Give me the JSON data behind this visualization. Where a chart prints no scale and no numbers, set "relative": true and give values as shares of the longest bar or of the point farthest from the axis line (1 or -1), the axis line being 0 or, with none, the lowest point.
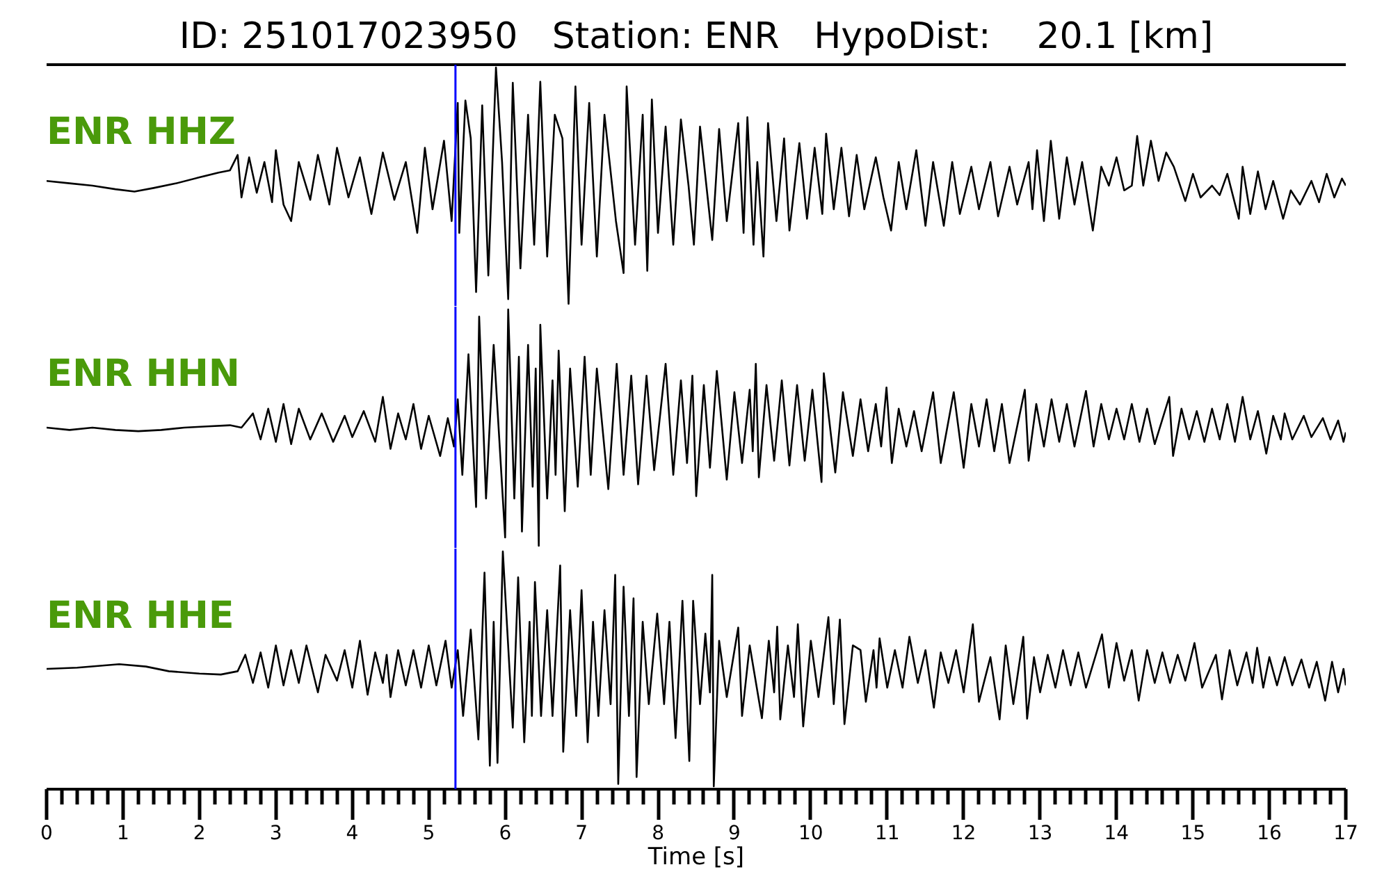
{
  "chart_data": [
    {
      "type": "line",
      "title": "ID: 251017023950   Station: ENR   HypoDist:    20.1 [km]",
      "relative": true,
      "xlim": [
        0,
        17
      ],
      "tick_labels": false,
      "ref_lines": [
        {
          "axis": "x",
          "value": 5.35,
          "color": "#0000ff"
        }
      ],
      "x": [
        0,
        0.3,
        0.6,
        0.9,
        1.15,
        1.4,
        1.7,
        2.0,
        2.25,
        2.4,
        2.5,
        2.55,
        2.65,
        2.75,
        2.85,
        2.95,
        3.0,
        3.1,
        3.2,
        3.3,
        3.45,
        3.55,
        3.7,
        3.8,
        3.95,
        4.1,
        4.25,
        4.4,
        4.55,
        4.7,
        4.85,
        4.95,
        5.05,
        5.2,
        5.3,
        5.38,
        5.4,
        5.48,
        5.55,
        5.62,
        5.7,
        5.78,
        5.88,
        5.96,
        6.04,
        6.1,
        6.2,
        6.3,
        6.38,
        6.46,
        6.55,
        6.65,
        6.75,
        6.83,
        6.92,
        7.0,
        7.1,
        7.2,
        7.3,
        7.45,
        7.55,
        7.59,
        7.7,
        7.8,
        7.86,
        7.92,
        8.0,
        8.1,
        8.2,
        8.3,
        8.4,
        8.47,
        8.55,
        8.65,
        8.71,
        8.8,
        8.9,
        9.05,
        9.12,
        9.17,
        9.25,
        9.3,
        9.38,
        9.44,
        9.55,
        9.65,
        9.72,
        9.85,
        9.95,
        10.05,
        10.15,
        10.2,
        10.3,
        10.4,
        10.5,
        10.6,
        10.7,
        10.85,
        10.95,
        11.05,
        11.15,
        11.25,
        11.38,
        11.5,
        11.6,
        11.74,
        11.85,
        11.95,
        12.1,
        12.2,
        12.35,
        12.45,
        12.6,
        12.7,
        12.85,
        12.9,
        12.96,
        13.05,
        13.14,
        13.25,
        13.35,
        13.45,
        13.55,
        13.69,
        13.8,
        13.9,
        14.0,
        14.1,
        14.2,
        14.27,
        14.35,
        14.45,
        14.55,
        14.65,
        14.75,
        14.9,
        15.0,
        15.1,
        15.25,
        15.35,
        15.45,
        15.6,
        15.65,
        15.75,
        15.85,
        15.95,
        16.05,
        16.18,
        16.28,
        16.4,
        16.55,
        16.65,
        16.75,
        16.85,
        16.95,
        17.0
      ],
      "series": [
        {
          "name": "ENR HHZ",
          "color": "#000000",
          "values": [
            0.52,
            0.51,
            0.5,
            0.485,
            0.475,
            0.49,
            0.51,
            0.535,
            0.555,
            0.565,
            0.63,
            0.45,
            0.62,
            0.47,
            0.6,
            0.43,
            0.65,
            0.42,
            0.35,
            0.6,
            0.44,
            0.63,
            0.42,
            0.66,
            0.45,
            0.62,
            0.38,
            0.64,
            0.44,
            0.6,
            0.3,
            0.66,
            0.4,
            0.69,
            0.35,
            0.85,
            0.3,
            0.86,
            0.7,
            0.05,
            0.84,
            0.12,
            1.0,
            0.6,
            0.02,
            0.935,
            0.15,
            0.8,
            0.25,
            0.94,
            0.2,
            0.8,
            0.7,
            0.0,
            0.92,
            0.25,
            0.85,
            0.2,
            0.8,
            0.35,
            0.13,
            0.92,
            0.25,
            0.8,
            0.14,
            0.865,
            0.3,
            0.75,
            0.25,
            0.78,
            0.5,
            0.25,
            0.75,
            0.45,
            0.27,
            0.74,
            0.35,
            0.765,
            0.3,
            0.79,
            0.25,
            0.6,
            0.2,
            0.765,
            0.35,
            0.7,
            0.31,
            0.68,
            0.36,
            0.66,
            0.38,
            0.72,
            0.4,
            0.66,
            0.37,
            0.63,
            0.4,
            0.62,
            0.45,
            0.31,
            0.6,
            0.4,
            0.65,
            0.33,
            0.6,
            0.33,
            0.6,
            0.38,
            0.58,
            0.4,
            0.6,
            0.37,
            0.58,
            0.42,
            0.6,
            0.4,
            0.65,
            0.35,
            0.69,
            0.36,
            0.62,
            0.42,
            0.6,
            0.31,
            0.58,
            0.5,
            0.62,
            0.48,
            0.5,
            0.71,
            0.5,
            0.69,
            0.52,
            0.64,
            0.58,
            0.435,
            0.55,
            0.45,
            0.5,
            0.46,
            0.55,
            0.36,
            0.58,
            0.38,
            0.56,
            0.4,
            0.52,
            0.36,
            0.48,
            0.42,
            0.52,
            0.43,
            0.55,
            0.45,
            0.53,
            0.5
          ]
        }
      ]
    },
    {
      "type": "line",
      "relative": true,
      "xlim": [
        0,
        17
      ],
      "tick_labels": false,
      "ref_lines": [
        {
          "axis": "x",
          "value": 5.35,
          "color": "#0000ff"
        }
      ],
      "x": [
        0,
        0.3,
        0.6,
        0.9,
        1.2,
        1.5,
        1.8,
        2.1,
        2.4,
        2.55,
        2.7,
        2.8,
        2.9,
        3.0,
        3.1,
        3.2,
        3.3,
        3.45,
        3.6,
        3.75,
        3.9,
        4.0,
        4.15,
        4.3,
        4.4,
        4.5,
        4.6,
        4.7,
        4.8,
        4.9,
        5.0,
        5.15,
        5.25,
        5.33,
        5.38,
        5.44,
        5.52,
        5.62,
        5.66,
        5.75,
        5.85,
        6.0,
        6.04,
        6.12,
        6.18,
        6.22,
        6.3,
        6.36,
        6.4,
        6.44,
        6.46,
        6.55,
        6.62,
        6.66,
        6.7,
        6.78,
        6.85,
        6.95,
        7.04,
        7.12,
        7.2,
        7.35,
        7.46,
        7.55,
        7.65,
        7.74,
        7.85,
        7.95,
        8.1,
        8.2,
        8.3,
        8.38,
        8.45,
        8.5,
        8.6,
        8.68,
        8.77,
        8.9,
        9.0,
        9.1,
        9.2,
        9.24,
        9.28,
        9.32,
        9.42,
        9.52,
        9.62,
        9.72,
        9.82,
        9.92,
        10.02,
        10.14,
        10.17,
        10.32,
        10.42,
        10.55,
        10.65,
        10.75,
        10.85,
        10.92,
        10.99,
        11.06,
        11.15,
        11.25,
        11.35,
        11.45,
        11.6,
        11.7,
        11.87,
        12.0,
        12.1,
        12.2,
        12.3,
        12.4,
        12.5,
        12.6,
        12.8,
        12.85,
        12.95,
        13.05,
        13.15,
        13.25,
        13.35,
        13.45,
        13.6,
        13.7,
        13.8,
        13.9,
        14.0,
        14.1,
        14.2,
        14.3,
        14.4,
        14.5,
        14.69,
        14.74,
        14.85,
        14.95,
        15.05,
        15.15,
        15.25,
        15.35,
        15.45,
        15.55,
        15.65,
        15.75,
        15.85,
        15.96,
        16.05,
        16.15,
        16.2,
        16.3,
        16.45,
        16.55,
        16.7,
        16.8,
        16.9,
        16.97,
        17.0
      ],
      "series": [
        {
          "name": "ENR HHN",
          "color": "#000000",
          "values": [
            0.5,
            0.49,
            0.5,
            0.49,
            0.485,
            0.49,
            0.5,
            0.505,
            0.51,
            0.5,
            0.56,
            0.45,
            0.58,
            0.44,
            0.6,
            0.43,
            0.58,
            0.45,
            0.56,
            0.44,
            0.55,
            0.46,
            0.57,
            0.44,
            0.63,
            0.41,
            0.56,
            0.45,
            0.6,
            0.41,
            0.55,
            0.38,
            0.54,
            0.42,
            0.62,
            0.3,
            0.81,
            0.164,
            0.97,
            0.2,
            0.85,
            0.035,
            1.0,
            0.2,
            0.8,
            0.06,
            0.85,
            0.25,
            0.75,
            0.0,
            0.935,
            0.2,
            0.7,
            0.3,
            0.826,
            0.146,
            0.75,
            0.25,
            0.8,
            0.3,
            0.75,
            0.24,
            0.77,
            0.3,
            0.72,
            0.26,
            0.72,
            0.32,
            0.77,
            0.3,
            0.7,
            0.35,
            0.72,
            0.21,
            0.68,
            0.33,
            0.74,
            0.28,
            0.65,
            0.35,
            0.66,
            0.4,
            0.77,
            0.29,
            0.68,
            0.36,
            0.7,
            0.34,
            0.68,
            0.36,
            0.66,
            0.27,
            0.73,
            0.31,
            0.65,
            0.38,
            0.62,
            0.4,
            0.6,
            0.42,
            0.67,
            0.35,
            0.58,
            0.42,
            0.57,
            0.4,
            0.65,
            0.35,
            0.65,
            0.33,
            0.6,
            0.42,
            0.62,
            0.4,
            0.6,
            0.35,
            0.66,
            0.36,
            0.6,
            0.42,
            0.62,
            0.44,
            0.6,
            0.42,
            0.655,
            0.42,
            0.6,
            0.45,
            0.58,
            0.45,
            0.6,
            0.44,
            0.58,
            0.43,
            0.63,
            0.38,
            0.58,
            0.45,
            0.57,
            0.44,
            0.58,
            0.45,
            0.6,
            0.44,
            0.63,
            0.45,
            0.57,
            0.39,
            0.55,
            0.45,
            0.56,
            0.45,
            0.55,
            0.46,
            0.54,
            0.45,
            0.53,
            0.44,
            0.48
          ]
        }
      ]
    },
    {
      "type": "line",
      "relative": true,
      "xlabel": "Time [s]",
      "xlim": [
        0,
        17
      ],
      "tick_labels": "x",
      "xticks": [
        0,
        {
          "value": 0.2,
          "label": null
        },
        {
          "value": 0.4,
          "label": null
        },
        {
          "value": 0.6,
          "label": null
        },
        {
          "value": 0.8,
          "label": null
        },
        1,
        {
          "value": 1.2,
          "label": null
        },
        {
          "value": 1.4,
          "label": null
        },
        {
          "value": 1.6,
          "label": null
        },
        {
          "value": 1.8,
          "label": null
        },
        2,
        {
          "value": 2.2,
          "label": null
        },
        {
          "value": 2.4,
          "label": null
        },
        {
          "value": 2.6,
          "label": null
        },
        {
          "value": 2.8,
          "label": null
        },
        3,
        {
          "value": 3.2,
          "label": null
        },
        {
          "value": 3.4,
          "label": null
        },
        {
          "value": 3.6,
          "label": null
        },
        {
          "value": 3.8,
          "label": null
        },
        4,
        {
          "value": 4.2,
          "label": null
        },
        {
          "value": 4.4,
          "label": null
        },
        {
          "value": 4.6,
          "label": null
        },
        {
          "value": 4.8,
          "label": null
        },
        5,
        {
          "value": 5.2,
          "label": null
        },
        {
          "value": 5.4,
          "label": null
        },
        {
          "value": 5.6,
          "label": null
        },
        {
          "value": 5.8,
          "label": null
        },
        6,
        {
          "value": 6.2,
          "label": null
        },
        {
          "value": 6.4,
          "label": null
        },
        {
          "value": 6.6,
          "label": null
        },
        {
          "value": 6.8,
          "label": null
        },
        7,
        {
          "value": 7.2,
          "label": null
        },
        {
          "value": 7.4,
          "label": null
        },
        {
          "value": 7.6,
          "label": null
        },
        {
          "value": 7.8,
          "label": null
        },
        8,
        {
          "value": 8.2,
          "label": null
        },
        {
          "value": 8.4,
          "label": null
        },
        {
          "value": 8.6,
          "label": null
        },
        {
          "value": 8.8,
          "label": null
        },
        9,
        {
          "value": 9.2,
          "label": null
        },
        {
          "value": 9.4,
          "label": null
        },
        {
          "value": 9.6,
          "label": null
        },
        {
          "value": 9.8,
          "label": null
        },
        10,
        {
          "value": 10.2,
          "label": null
        },
        {
          "value": 10.4,
          "label": null
        },
        {
          "value": 10.6,
          "label": null
        },
        {
          "value": 10.8,
          "label": null
        },
        11,
        {
          "value": 11.2,
          "label": null
        },
        {
          "value": 11.4,
          "label": null
        },
        {
          "value": 11.6,
          "label": null
        },
        {
          "value": 11.8,
          "label": null
        },
        12,
        {
          "value": 12.2,
          "label": null
        },
        {
          "value": 12.4,
          "label": null
        },
        {
          "value": 12.6,
          "label": null
        },
        {
          "value": 12.8,
          "label": null
        },
        13,
        {
          "value": 13.2,
          "label": null
        },
        {
          "value": 13.4,
          "label": null
        },
        {
          "value": 13.6,
          "label": null
        },
        {
          "value": 13.8,
          "label": null
        },
        14,
        {
          "value": 14.2,
          "label": null
        },
        {
          "value": 14.4,
          "label": null
        },
        {
          "value": 14.6,
          "label": null
        },
        {
          "value": 14.8,
          "label": null
        },
        15,
        {
          "value": 15.2,
          "label": null
        },
        {
          "value": 15.4,
          "label": null
        },
        {
          "value": 15.6,
          "label": null
        },
        {
          "value": 15.8,
          "label": null
        },
        16,
        {
          "value": 16.2,
          "label": null
        },
        {
          "value": 16.4,
          "label": null
        },
        {
          "value": 16.6,
          "label": null
        },
        {
          "value": 16.8,
          "label": null
        },
        17
      ],
      "ref_lines": [
        {
          "axis": "x",
          "value": 5.35,
          "color": "#0000ff"
        }
      ],
      "x": [
        0,
        0.4,
        0.95,
        1.3,
        1.6,
        2.0,
        2.28,
        2.5,
        2.6,
        2.7,
        2.8,
        2.9,
        3.0,
        3.1,
        3.2,
        3.3,
        3.4,
        3.55,
        3.65,
        3.8,
        3.9,
        4.0,
        4.1,
        4.2,
        4.3,
        4.4,
        4.45,
        4.5,
        4.6,
        4.7,
        4.8,
        4.9,
        5.0,
        5.1,
        5.22,
        5.3,
        5.38,
        5.45,
        5.55,
        5.65,
        5.73,
        5.8,
        5.85,
        5.9,
        5.97,
        6.1,
        6.17,
        6.25,
        6.32,
        6.35,
        6.39,
        6.47,
        6.55,
        6.62,
        6.72,
        6.76,
        6.85,
        6.93,
        7.0,
        7.08,
        7.15,
        7.22,
        7.3,
        7.38,
        7.44,
        7.48,
        7.55,
        7.62,
        7.68,
        7.72,
        7.8,
        7.88,
        7.99,
        8.08,
        8.15,
        8.23,
        8.32,
        8.41,
        8.46,
        8.55,
        8.62,
        8.68,
        8.71,
        8.73,
        8.8,
        8.9,
        9.05,
        9.1,
        9.2,
        9.36,
        9.45,
        9.52,
        9.56,
        9.6,
        9.7,
        9.78,
        9.83,
        9.9,
        10.0,
        10.1,
        10.23,
        10.3,
        10.38,
        10.44,
        10.55,
        10.65,
        10.72,
        10.82,
        10.86,
        10.9,
        11.0,
        11.1,
        11.2,
        11.29,
        11.4,
        11.5,
        11.61,
        11.7,
        11.8,
        11.9,
        12.0,
        12.12,
        12.2,
        12.35,
        12.47,
        12.55,
        12.65,
        12.78,
        12.83,
        12.92,
        13.0,
        13.1,
        13.2,
        13.3,
        13.4,
        13.5,
        13.6,
        13.81,
        13.9,
        14.0,
        14.1,
        14.2,
        14.29,
        14.4,
        14.5,
        14.6,
        14.7,
        14.8,
        14.9,
        15.02,
        15.12,
        15.3,
        15.38,
        15.48,
        15.58,
        15.7,
        15.78,
        15.84,
        15.92,
        16.0,
        16.1,
        16.2,
        16.3,
        16.42,
        16.52,
        16.62,
        16.73,
        16.82,
        16.9,
        16.97,
        17.0
      ],
      "series": [
        {
          "name": "ENR HHE",
          "color": "#000000",
          "values": [
            0.5,
            0.505,
            0.52,
            0.51,
            0.49,
            0.48,
            0.476,
            0.49,
            0.56,
            0.44,
            0.57,
            0.42,
            0.6,
            0.43,
            0.58,
            0.44,
            0.6,
            0.4,
            0.56,
            0.45,
            0.58,
            0.42,
            0.62,
            0.39,
            0.57,
            0.44,
            0.56,
            0.38,
            0.58,
            0.43,
            0.58,
            0.42,
            0.6,
            0.43,
            0.62,
            0.42,
            0.58,
            0.3,
            0.667,
            0.2,
            0.91,
            0.088,
            0.7,
            0.1,
            1.0,
            0.25,
            0.89,
            0.188,
            0.7,
            0.3,
            0.87,
            0.3,
            0.75,
            0.3,
            0.94,
            0.147,
            0.75,
            0.3,
            0.835,
            0.188,
            0.7,
            0.3,
            0.75,
            0.35,
            0.9,
            0.01,
            0.85,
            0.3,
            0.8,
            0.04,
            0.7,
            0.35,
            0.735,
            0.35,
            0.7,
            0.206,
            0.79,
            0.108,
            0.79,
            0.35,
            0.65,
            0.4,
            0.9,
            0.0,
            0.62,
            0.38,
            0.676,
            0.3,
            0.6,
            0.29,
            0.62,
            0.4,
            0.68,
            0.285,
            0.6,
            0.38,
            0.69,
            0.255,
            0.62,
            0.38,
            0.72,
            0.35,
            0.71,
            0.265,
            0.6,
            0.58,
            0.36,
            0.58,
            0.42,
            0.63,
            0.42,
            0.58,
            0.42,
            0.637,
            0.44,
            0.58,
            0.335,
            0.57,
            0.44,
            0.58,
            0.4,
            0.69,
            0.36,
            0.55,
            0.285,
            0.6,
            0.35,
            0.637,
            0.288,
            0.55,
            0.4,
            0.56,
            0.42,
            0.58,
            0.43,
            0.57,
            0.42,
            0.647,
            0.42,
            0.61,
            0.45,
            0.58,
            0.365,
            0.58,
            0.44,
            0.57,
            0.44,
            0.56,
            0.45,
            0.61,
            0.42,
            0.56,
            0.37,
            0.58,
            0.43,
            0.57,
            0.44,
            0.59,
            0.42,
            0.55,
            0.43,
            0.55,
            0.43,
            0.54,
            0.42,
            0.53,
            0.365,
            0.53,
            0.4,
            0.5,
            0.43
          ]
        }
      ]
    }
  ]
}
